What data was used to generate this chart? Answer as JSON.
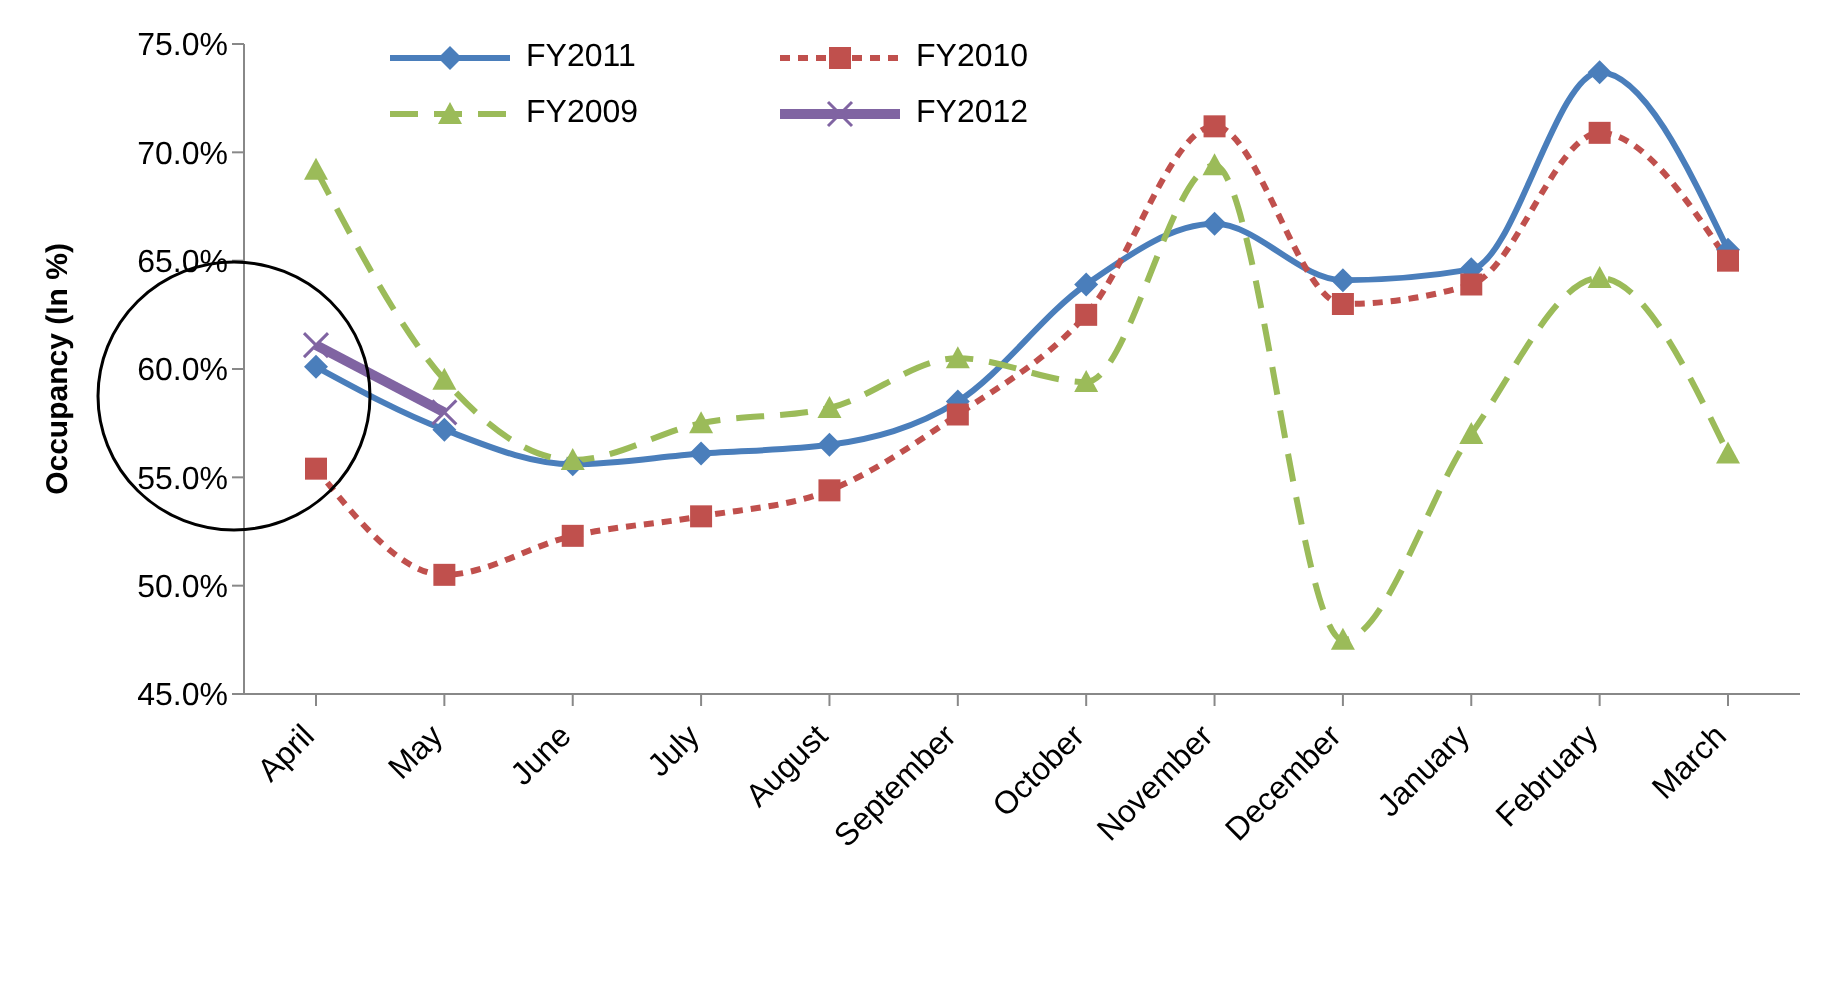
{
  "chart_data": {
    "type": "line",
    "ylabel": "Occupancy   (In %)",
    "categories": [
      "April",
      "May",
      "June",
      "July",
      "August",
      "September",
      "October",
      "November",
      "December",
      "January",
      "February",
      "March"
    ],
    "series": [
      {
        "name": "FY2011",
        "color": "#4a7ebb",
        "marker": "diamond",
        "line_style": "solid",
        "values": [
          60.1,
          57.2,
          55.6,
          56.1,
          56.5,
          58.5,
          63.9,
          66.7,
          64.1,
          64.6,
          73.7,
          65.5
        ]
      },
      {
        "name": "FY2010",
        "color": "#c0504d",
        "marker": "square",
        "line_style": "dotted",
        "values": [
          55.4,
          50.5,
          52.3,
          53.2,
          54.4,
          57.9,
          62.5,
          71.2,
          63.0,
          63.9,
          70.9,
          65.0
        ]
      },
      {
        "name": "FY2009",
        "color": "#9bbb59",
        "marker": "triangle",
        "line_style": "dashed",
        "values": [
          69.2,
          59.5,
          55.8,
          57.5,
          58.2,
          60.5,
          59.4,
          69.4,
          47.5,
          57.0,
          64.2,
          56.1
        ]
      },
      {
        "name": "FY2012",
        "color": "#8064a2",
        "marker": "cross",
        "line_style": "solid",
        "values": [
          61.1,
          58.0,
          null,
          null,
          null,
          null,
          null,
          null,
          null,
          null,
          null,
          null
        ]
      }
    ],
    "ylim": [
      45,
      75
    ],
    "yticks": [
      {
        "value": 45,
        "label": "45.0%"
      },
      {
        "value": 50,
        "label": "50.0%"
      },
      {
        "value": 55,
        "label": "55.0%"
      },
      {
        "value": 60,
        "label": "60.0%"
      },
      {
        "value": 65,
        "label": "65.0%"
      },
      {
        "value": 70,
        "label": "70.0%"
      },
      {
        "value": 75,
        "label": "75.0%"
      }
    ],
    "grid": false,
    "legend": "top"
  }
}
